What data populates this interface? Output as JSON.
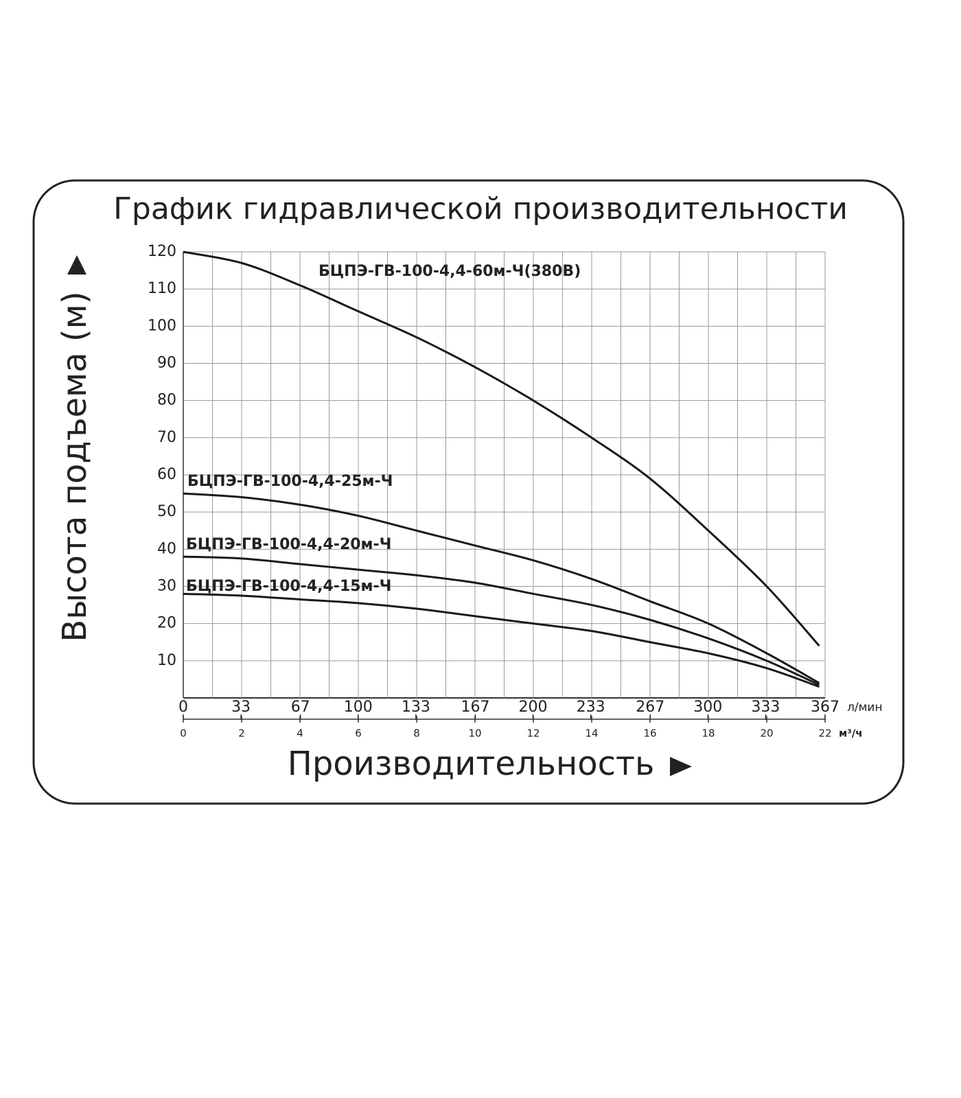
{
  "chart_data": {
    "type": "line",
    "title": "График гидравлической производительности",
    "ylabel": "Высота подъема (м)",
    "xlabel": "Производительность",
    "xunit": "м³/ч",
    "x2unit": "л/мин",
    "x": [
      0,
      2,
      4,
      6,
      8,
      10,
      12,
      14,
      16,
      18,
      20,
      21.8
    ],
    "series": [
      {
        "name": "БЦПЭ-ГВ-100-4,4-60м-Ч(380В)",
        "color": "#1a1a1a",
        "values": [
          120,
          117,
          111,
          104,
          97,
          89,
          80,
          70,
          59,
          45,
          30,
          14
        ]
      },
      {
        "name": "БЦПЭ-ГВ-100-4,4-25м-Ч",
        "color": "#1a1a1a",
        "values": [
          55,
          54,
          52,
          49,
          45,
          41,
          37,
          32,
          26,
          20,
          12,
          4
        ]
      },
      {
        "name": "БЦПЭ-ГВ-100-4,4-20м-Ч",
        "color": "#1a1a1a",
        "values": [
          38,
          37.5,
          36,
          34.5,
          33,
          31,
          28,
          25,
          21,
          16,
          10,
          3.5
        ]
      },
      {
        "name": "БЦПЭ-ГВ-100-4,4-15м-Ч",
        "color": "#1a1a1a",
        "values": [
          28,
          27.5,
          26.5,
          25.5,
          24,
          22,
          20,
          18,
          15,
          12,
          8,
          3
        ]
      }
    ],
    "xlim": [
      0,
      22
    ],
    "xticks": [
      0,
      2,
      4,
      6,
      8,
      10,
      12,
      14,
      16,
      18,
      20,
      22
    ],
    "x2lim": [
      0,
      367
    ],
    "x2ticks": [
      0,
      33,
      67,
      100,
      133,
      167,
      200,
      233,
      267,
      300,
      333,
      367
    ],
    "ylim": [
      0,
      120
    ],
    "yticks": [
      10,
      20,
      30,
      40,
      50,
      60,
      70,
      80,
      90,
      100,
      110,
      120
    ],
    "grid": true
  }
}
